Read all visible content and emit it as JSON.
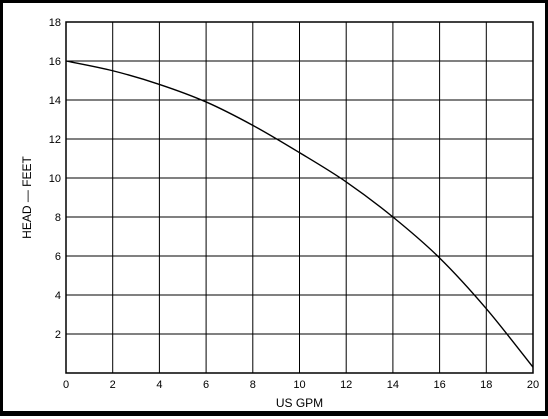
{
  "chart_data": {
    "type": "line",
    "title": "",
    "xlabel": "US GPM",
    "ylabel": "HEAD — FEET",
    "xlim": [
      0,
      20
    ],
    "ylim": [
      0,
      18
    ],
    "x_ticks": [
      "0",
      "2",
      "4",
      "6",
      "8",
      "10",
      "12",
      "14",
      "16",
      "18",
      "20"
    ],
    "y_ticks": [
      "2",
      "4",
      "6",
      "8",
      "10",
      "12",
      "14",
      "16",
      "18"
    ],
    "grid": true,
    "legend": "none",
    "series": [
      {
        "x": [
          0,
          2,
          4,
          6,
          8,
          10,
          12,
          14,
          16,
          18,
          20
        ],
        "y": [
          16.0,
          15.5,
          14.8,
          13.9,
          12.7,
          11.3,
          9.8,
          8.0,
          5.9,
          3.3,
          0.3
        ]
      }
    ],
    "colors": {
      "line": "#000000",
      "grid": "#000000",
      "background": "#ffffff"
    }
  }
}
